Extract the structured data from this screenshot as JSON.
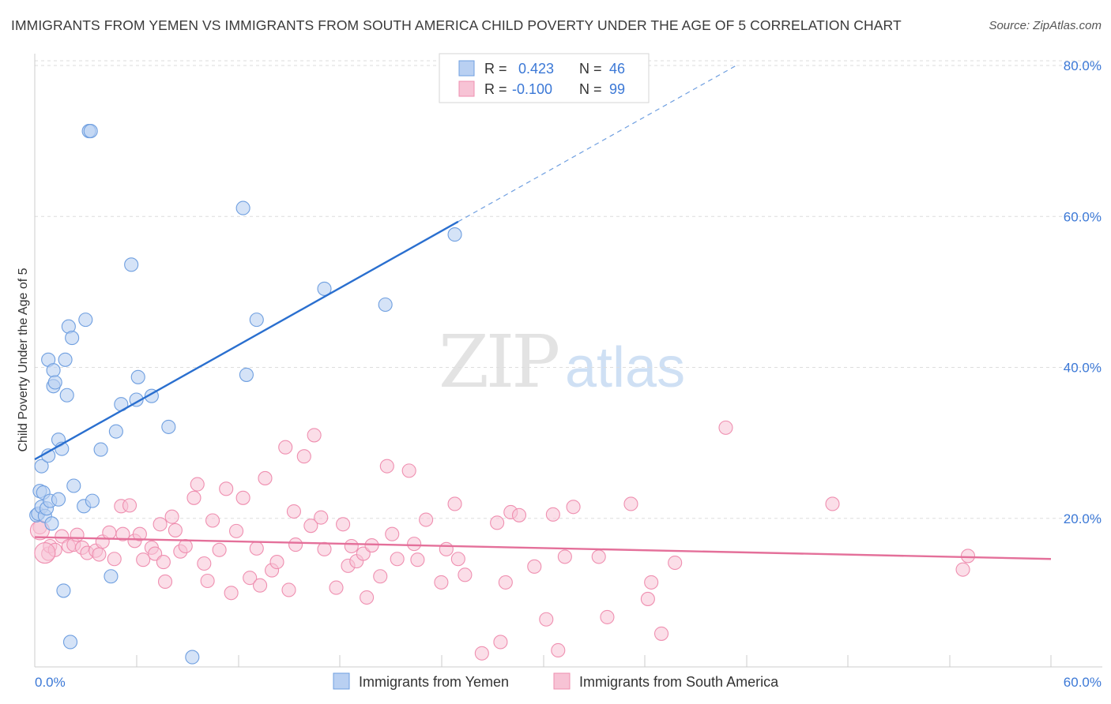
{
  "chart_data": {
    "type": "scatter",
    "title": "IMMIGRANTS FROM YEMEN VS IMMIGRANTS FROM SOUTH AMERICA CHILD POVERTY UNDER THE AGE OF 5 CORRELATION CHART",
    "source": "Source: ZipAtlas.com",
    "ylabel": "Child Poverty Under the Age of 5",
    "xlabel": "",
    "xlim": [
      0,
      60
    ],
    "ylim": [
      0,
      80
    ],
    "x_tick_labels": [
      "0.0%",
      "60.0%"
    ],
    "y_tick_labels": [
      "20.0%",
      "40.0%",
      "60.0%",
      "80.0%"
    ],
    "y_ticks": [
      20,
      40,
      60,
      80
    ],
    "grid": true,
    "legend_position": "top-center",
    "watermark": "ZIPatlas",
    "colors": {
      "yemen": "#6f9fe0",
      "yemen_fill": "#b9d0f2",
      "yemen_line": "#2a6fcf",
      "south_america": "#ef8fb0",
      "south_america_fill": "#f7c3d5",
      "south_america_line": "#e4709a",
      "value_text": "#3b78d6",
      "grid": "#dddddd"
    },
    "stats": [
      {
        "r_label": "R =",
        "r": "0.423",
        "n_label": "N =",
        "n": "46"
      },
      {
        "r_label": "R =",
        "r": "-0.100",
        "n_label": "N =",
        "n": "99"
      }
    ],
    "series": [
      {
        "name": "Immigrants from Yemen",
        "trend": {
          "x0": 0,
          "y0": 27.5,
          "x1": 25,
          "y1": 59,
          "dash_to_x": 41.5
        },
        "points": [
          [
            0.1,
            20.1
          ],
          [
            0.2,
            20.3
          ],
          [
            0.3,
            23.3
          ],
          [
            0.4,
            26.6
          ],
          [
            0.4,
            21.2
          ],
          [
            0.5,
            23.1
          ],
          [
            0.6,
            20.0
          ],
          [
            0.7,
            21.0
          ],
          [
            0.8,
            28.0
          ],
          [
            0.8,
            40.7
          ],
          [
            0.9,
            22.0
          ],
          [
            1.0,
            19.0
          ],
          [
            1.1,
            37.2
          ],
          [
            1.1,
            39.3
          ],
          [
            1.2,
            37.7
          ],
          [
            1.4,
            30.1
          ],
          [
            1.4,
            22.2
          ],
          [
            1.6,
            28.9
          ],
          [
            1.7,
            10.1
          ],
          [
            1.8,
            40.7
          ],
          [
            1.9,
            36.0
          ],
          [
            2.0,
            45.1
          ],
          [
            2.1,
            3.3
          ],
          [
            2.2,
            43.6
          ],
          [
            2.3,
            24.0
          ],
          [
            2.9,
            21.3
          ],
          [
            3.0,
            46.0
          ],
          [
            3.2,
            71.0
          ],
          [
            3.3,
            71.0
          ],
          [
            3.4,
            22.0
          ],
          [
            3.9,
            28.8
          ],
          [
            4.5,
            12.0
          ],
          [
            4.8,
            31.2
          ],
          [
            5.1,
            34.8
          ],
          [
            5.7,
            53.3
          ],
          [
            6.0,
            35.4
          ],
          [
            6.1,
            38.4
          ],
          [
            6.9,
            35.9
          ],
          [
            7.9,
            31.8
          ],
          [
            9.3,
            1.3
          ],
          [
            12.3,
            60.8
          ],
          [
            12.5,
            38.7
          ],
          [
            13.1,
            46.0
          ],
          [
            17.1,
            50.1
          ],
          [
            20.7,
            48.0
          ],
          [
            24.8,
            57.3
          ]
        ]
      },
      {
        "name": "Immigrants from South America",
        "trend": {
          "x0": 0,
          "y0": 17.2,
          "x1": 60,
          "y1": 14.3
        },
        "points": [
          [
            0.3,
            18.5
          ],
          [
            0.8,
            15.0
          ],
          [
            0.9,
            16.0
          ],
          [
            1.2,
            15.5
          ],
          [
            1.6,
            17.3
          ],
          [
            2.0,
            16.0
          ],
          [
            2.3,
            16.2
          ],
          [
            2.5,
            17.5
          ],
          [
            2.8,
            15.8
          ],
          [
            3.1,
            15.1
          ],
          [
            3.6,
            15.4
          ],
          [
            3.8,
            14.9
          ],
          [
            4.0,
            16.6
          ],
          [
            4.4,
            17.8
          ],
          [
            4.7,
            14.3
          ],
          [
            5.1,
            21.3
          ],
          [
            5.2,
            17.6
          ],
          [
            5.6,
            21.4
          ],
          [
            5.9,
            16.7
          ],
          [
            6.2,
            17.6
          ],
          [
            6.4,
            14.2
          ],
          [
            6.9,
            15.8
          ],
          [
            7.1,
            15.0
          ],
          [
            7.4,
            18.9
          ],
          [
            7.6,
            13.9
          ],
          [
            7.7,
            11.3
          ],
          [
            8.1,
            19.9
          ],
          [
            8.3,
            18.1
          ],
          [
            8.6,
            15.3
          ],
          [
            8.9,
            16.0
          ],
          [
            9.4,
            22.4
          ],
          [
            9.6,
            24.2
          ],
          [
            10.0,
            13.7
          ],
          [
            10.2,
            11.4
          ],
          [
            10.5,
            19.4
          ],
          [
            10.9,
            15.5
          ],
          [
            11.3,
            23.6
          ],
          [
            11.6,
            9.8
          ],
          [
            11.9,
            18.0
          ],
          [
            12.3,
            22.4
          ],
          [
            12.7,
            11.8
          ],
          [
            13.1,
            15.7
          ],
          [
            13.3,
            10.8
          ],
          [
            13.6,
            25.0
          ],
          [
            14.0,
            12.8
          ],
          [
            14.3,
            13.9
          ],
          [
            14.8,
            29.1
          ],
          [
            15.0,
            10.2
          ],
          [
            15.3,
            20.6
          ],
          [
            15.4,
            16.2
          ],
          [
            15.9,
            27.9
          ],
          [
            16.3,
            18.7
          ],
          [
            16.5,
            30.7
          ],
          [
            16.9,
            19.8
          ],
          [
            17.1,
            15.6
          ],
          [
            17.8,
            10.5
          ],
          [
            18.2,
            18.9
          ],
          [
            18.5,
            13.4
          ],
          [
            18.7,
            16.0
          ],
          [
            19.0,
            14.0
          ],
          [
            19.4,
            15.0
          ],
          [
            19.6,
            9.2
          ],
          [
            19.9,
            16.1
          ],
          [
            20.4,
            12.0
          ],
          [
            20.8,
            26.6
          ],
          [
            21.1,
            17.6
          ],
          [
            21.4,
            14.3
          ],
          [
            22.1,
            26.0
          ],
          [
            22.4,
            16.3
          ],
          [
            22.6,
            14.2
          ],
          [
            23.1,
            19.5
          ],
          [
            24.0,
            11.2
          ],
          [
            24.3,
            15.6
          ],
          [
            24.8,
            21.6
          ],
          [
            25.0,
            14.3
          ],
          [
            25.4,
            12.2
          ],
          [
            26.4,
            1.8
          ],
          [
            27.3,
            19.1
          ],
          [
            27.5,
            3.3
          ],
          [
            27.8,
            11.2
          ],
          [
            28.1,
            20.5
          ],
          [
            28.6,
            20.1
          ],
          [
            29.5,
            13.3
          ],
          [
            30.2,
            6.3
          ],
          [
            30.6,
            20.2
          ],
          [
            30.9,
            2.2
          ],
          [
            31.3,
            14.6
          ],
          [
            31.8,
            21.2
          ],
          [
            33.3,
            14.6
          ],
          [
            33.8,
            6.6
          ],
          [
            35.2,
            21.6
          ],
          [
            36.2,
            9.0
          ],
          [
            36.4,
            11.2
          ],
          [
            37.0,
            4.4
          ],
          [
            37.8,
            13.8
          ],
          [
            40.8,
            31.7
          ],
          [
            47.1,
            21.6
          ],
          [
            54.8,
            12.9
          ],
          [
            55.1,
            14.7
          ]
        ]
      }
    ]
  }
}
